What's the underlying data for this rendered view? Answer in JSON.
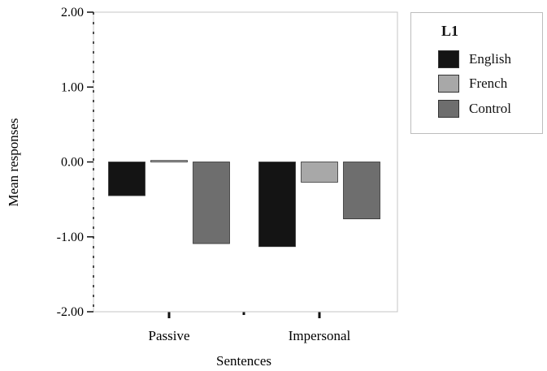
{
  "chart_data": {
    "type": "bar",
    "categories": [
      "Passive",
      "Impersonal"
    ],
    "series": [
      {
        "name": "English",
        "values": [
          -0.45,
          -1.13
        ],
        "color": "#141414"
      },
      {
        "name": "French",
        "values": [
          0.02,
          -0.27
        ],
        "color": "#a8a8a8"
      },
      {
        "name": "Control",
        "values": [
          -1.09,
          -0.76
        ],
        "color": "#6e6e6e"
      }
    ],
    "legend_title": "L1",
    "xlabel": "Sentences",
    "ylabel": "Mean responses",
    "ylim": [
      -2,
      2
    ],
    "yticks": [
      2,
      1,
      0,
      -1,
      -2
    ],
    "ytick_labels": [
      "2.00",
      "1.00",
      "0.00",
      "-1.00",
      "-2.00"
    ],
    "legend_position": "right",
    "grid": false
  }
}
